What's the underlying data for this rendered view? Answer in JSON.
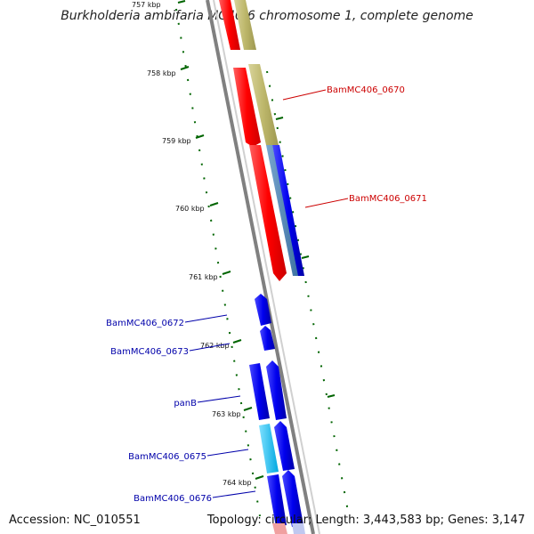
{
  "title": "Burkholderia ambifaria MC40-6 chromosome 1, complete genome",
  "footer": {
    "accession": "Accession: NC_010551",
    "summary": "Topology: circular; Length: 3,443,583 bp; Genes: 3,147"
  },
  "ticks": [
    "757 kbp",
    "758 kbp",
    "759 kbp",
    "760 kbp",
    "761 kbp",
    "762 kbp",
    "763 kbp",
    "764 kbp"
  ],
  "genes_right": [
    {
      "name": "BamMC406_0670",
      "color": "#cc0000"
    },
    {
      "name": "BamMC406_0671",
      "color": "#cc0000"
    }
  ],
  "genes_left": [
    {
      "name": "BamMC406_0672",
      "color": "#0000aa"
    },
    {
      "name": "BamMC406_0673",
      "color": "#0000aa"
    },
    {
      "name": "panB",
      "color": "#0000aa"
    },
    {
      "name": "BamMC406_0675",
      "color": "#0000aa"
    },
    {
      "name": "BamMC406_0676",
      "color": "#0000aa"
    }
  ],
  "colors": {
    "cds_red": "#ff0000",
    "gene_tan": "#bdb76b",
    "cds_blue": "#0000ee",
    "steel_blue": "#4682b4",
    "cyan": "#00bfff",
    "tick_green": "#006400",
    "backbone": "#808080"
  }
}
